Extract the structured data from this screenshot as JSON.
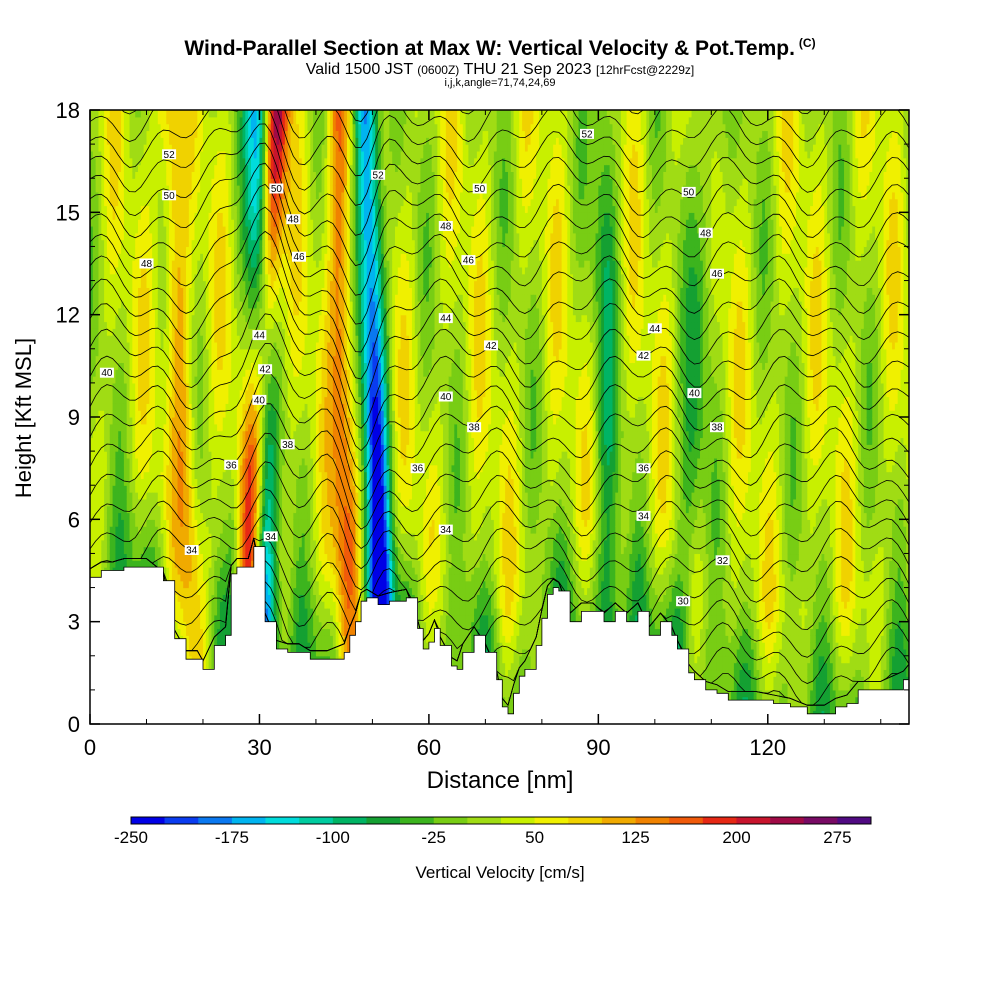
{
  "chart_data": {
    "type": "heatmap",
    "title": "Wind-Parallel Section at Max W: Vertical Velocity & Pot.Temp.",
    "title_mark": "(C)",
    "subtitle_prefix": "Valid 1500 JST",
    "subtitle_utc": "(0600Z)",
    "subtitle_date": "THU 21 Sep 2023",
    "subtitle_forecast": "[12hrFcst@2229z]",
    "params": "i,j,k,angle=71,74,24,69",
    "xlabel": "Distance [nm]",
    "ylabel": "Height [Kft MSL]",
    "xlim": [
      0,
      145
    ],
    "ylim": [
      0,
      18
    ],
    "xticks": [
      0,
      30,
      60,
      90,
      120
    ],
    "yticks": [
      0,
      3,
      6,
      9,
      12,
      15,
      18
    ],
    "colorbar": {
      "label": "Vertical Velocity [cm/s]",
      "range": [
        -250,
        300
      ],
      "ticks": [
        -250,
        -175,
        -100,
        -25,
        50,
        125,
        200,
        275
      ],
      "colors": [
        "#0000e6",
        "#0a3cf0",
        "#0a78f0",
        "#00b4f0",
        "#00dcdc",
        "#00cca0",
        "#00b464",
        "#14a032",
        "#3cb41e",
        "#78cd14",
        "#a0dc14",
        "#c8f000",
        "#f0f000",
        "#f0d200",
        "#f0aa00",
        "#f08200",
        "#f05a0a",
        "#e62814",
        "#c8142d",
        "#a00a46",
        "#780a64",
        "#500a82"
      ]
    },
    "velocity_features": [
      {
        "x_top": 30,
        "x_bottom": 31,
        "w": -220,
        "kind": "downdraft"
      },
      {
        "x_top": 33,
        "x_bottom": 27,
        "w": 230,
        "kind": "updraft"
      },
      {
        "x_top": 49,
        "x_bottom": 52,
        "w": -240,
        "kind": "downdraft"
      },
      {
        "x_top": 44,
        "x_bottom": 46,
        "w": 120,
        "kind": "updraft"
      },
      {
        "x_top": 14,
        "x_bottom": 19,
        "w": 90,
        "kind": "updraft"
      },
      {
        "x_top": 91,
        "x_bottom": 92,
        "w": -70,
        "kind": "downdraft"
      },
      {
        "x_top": 110,
        "x_bottom": 104,
        "w": -70,
        "kind": "downdraft"
      }
    ],
    "terrain": [
      [
        0,
        4.3
      ],
      [
        2,
        4.5
      ],
      [
        4,
        4.5
      ],
      [
        6,
        4.6
      ],
      [
        10,
        4.6
      ],
      [
        13,
        4.2
      ],
      [
        15,
        2.5
      ],
      [
        17,
        1.9
      ],
      [
        19,
        1.9
      ],
      [
        20,
        1.6
      ],
      [
        22,
        2.3
      ],
      [
        24,
        2.6
      ],
      [
        25,
        4.4
      ],
      [
        26,
        4.6
      ],
      [
        28,
        4.6
      ],
      [
        29,
        5.2
      ],
      [
        31,
        3.0
      ],
      [
        33,
        2.2
      ],
      [
        35,
        2.1
      ],
      [
        37,
        2.1
      ],
      [
        39,
        1.9
      ],
      [
        42,
        1.9
      ],
      [
        45,
        2.1
      ],
      [
        46,
        2.6
      ],
      [
        47,
        3.0
      ],
      [
        48,
        3.6
      ],
      [
        49,
        3.7
      ],
      [
        51,
        3.5
      ],
      [
        53,
        3.6
      ],
      [
        56,
        3.7
      ],
      [
        58,
        2.8
      ],
      [
        59,
        2.2
      ],
      [
        60,
        2.4
      ],
      [
        61,
        2.8
      ],
      [
        62,
        2.3
      ],
      [
        64,
        1.7
      ],
      [
        65,
        1.6
      ],
      [
        66,
        2.1
      ],
      [
        68,
        2.6
      ],
      [
        70,
        2.1
      ],
      [
        72,
        1.3
      ],
      [
        73,
        0.5
      ],
      [
        74,
        0.3
      ],
      [
        75,
        0.9
      ],
      [
        76,
        1.4
      ],
      [
        77,
        1.6
      ],
      [
        79,
        2.3
      ],
      [
        80,
        3.1
      ],
      [
        81,
        3.8
      ],
      [
        82,
        4.0
      ],
      [
        83,
        3.9
      ],
      [
        85,
        3.0
      ],
      [
        87,
        3.3
      ],
      [
        89,
        3.3
      ],
      [
        91,
        3.0
      ],
      [
        93,
        3.3
      ],
      [
        95,
        3.0
      ],
      [
        97,
        3.3
      ],
      [
        99,
        2.6
      ],
      [
        101,
        3.0
      ],
      [
        103,
        2.6
      ],
      [
        104,
        2.2
      ],
      [
        106,
        1.5
      ],
      [
        107,
        1.3
      ],
      [
        109,
        1.0
      ],
      [
        111,
        0.9
      ],
      [
        113,
        0.7
      ],
      [
        118,
        0.7
      ],
      [
        121,
        0.6
      ],
      [
        124,
        0.5
      ],
      [
        127,
        0.3
      ],
      [
        130,
        0.3
      ],
      [
        132,
        0.5
      ],
      [
        134,
        0.6
      ],
      [
        136,
        1.0
      ],
      [
        140,
        1.0
      ],
      [
        144,
        1.3
      ],
      [
        145,
        1.5
      ]
    ],
    "theta_contours": {
      "units": "degC",
      "range": [
        28,
        56
      ],
      "labels": [
        {
          "value": 52,
          "x": 14,
          "y": 16.7
        },
        {
          "value": 50,
          "x": 14,
          "y": 15.5
        },
        {
          "value": 48,
          "x": 10,
          "y": 13.5
        },
        {
          "value": 40,
          "x": 3,
          "y": 10.3
        },
        {
          "value": 34,
          "x": 18,
          "y": 5.1
        },
        {
          "value": 36,
          "x": 25,
          "y": 7.6
        },
        {
          "value": 44,
          "x": 30,
          "y": 11.4
        },
        {
          "value": 42,
          "x": 31,
          "y": 10.4
        },
        {
          "value": 40,
          "x": 30,
          "y": 9.5
        },
        {
          "value": 38,
          "x": 35,
          "y": 8.2
        },
        {
          "value": 34,
          "x": 32,
          "y": 5.5
        },
        {
          "value": 50,
          "x": 33,
          "y": 15.7
        },
        {
          "value": 48,
          "x": 36,
          "y": 14.8
        },
        {
          "value": 46,
          "x": 37,
          "y": 13.7
        },
        {
          "value": 52,
          "x": 51,
          "y": 16.1
        },
        {
          "value": 50,
          "x": 69,
          "y": 15.7
        },
        {
          "value": 48,
          "x": 63,
          "y": 14.6
        },
        {
          "value": 46,
          "x": 67,
          "y": 13.6
        },
        {
          "value": 44,
          "x": 63,
          "y": 11.9
        },
        {
          "value": 42,
          "x": 71,
          "y": 11.1
        },
        {
          "value": 40,
          "x": 63,
          "y": 9.6
        },
        {
          "value": 38,
          "x": 68,
          "y": 8.7
        },
        {
          "value": 36,
          "x": 58,
          "y": 7.5
        },
        {
          "value": 34,
          "x": 63,
          "y": 5.7
        },
        {
          "value": 52,
          "x": 88,
          "y": 17.3
        },
        {
          "value": 50,
          "x": 106,
          "y": 15.6
        },
        {
          "value": 48,
          "x": 109,
          "y": 14.4
        },
        {
          "value": 46,
          "x": 111,
          "y": 13.2
        },
        {
          "value": 44,
          "x": 100,
          "y": 11.6
        },
        {
          "value": 42,
          "x": 98,
          "y": 10.8
        },
        {
          "value": 40,
          "x": 107,
          "y": 9.7
        },
        {
          "value": 38,
          "x": 111,
          "y": 8.7
        },
        {
          "value": 36,
          "x": 98,
          "y": 7.5
        },
        {
          "value": 34,
          "x": 98,
          "y": 6.1
        },
        {
          "value": 32,
          "x": 112,
          "y": 4.8
        },
        {
          "value": 30,
          "x": 105,
          "y": 3.6
        }
      ]
    }
  }
}
